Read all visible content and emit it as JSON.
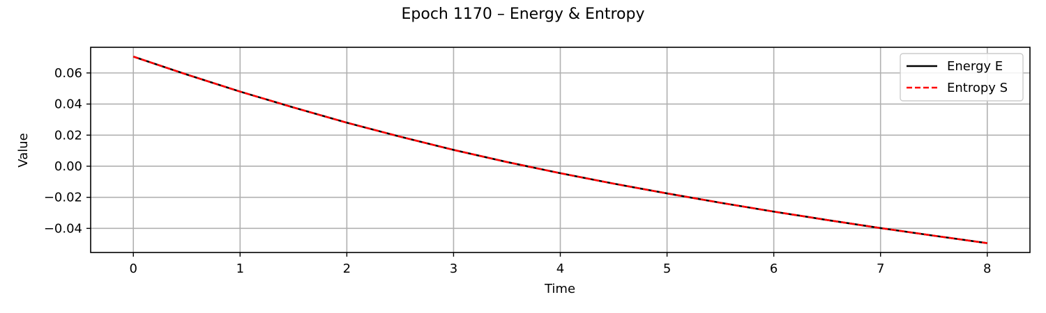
{
  "chart_data": {
    "type": "line",
    "title": "Epoch 1170 – Energy & Entropy",
    "xlabel": "Time",
    "ylabel": "Value",
    "xlim": [
      -0.4,
      8.4
    ],
    "ylim": [
      -0.0555,
      0.0765
    ],
    "xticks": [
      0,
      1,
      2,
      3,
      4,
      5,
      6,
      7,
      8
    ],
    "yticks": [
      -0.04,
      -0.02,
      0.0,
      0.02,
      0.04,
      0.06
    ],
    "ytick_labels": [
      "−0.04",
      "−0.02",
      "0.00",
      "0.02",
      "0.04",
      "0.06"
    ],
    "xtick_labels": [
      "0",
      "1",
      "2",
      "3",
      "4",
      "5",
      "6",
      "7",
      "8"
    ],
    "grid": true,
    "legend_position": "top-right",
    "x": [
      0,
      0.5,
      1,
      1.5,
      2,
      2.5,
      3,
      3.5,
      4,
      4.5,
      5,
      5.5,
      6,
      6.5,
      7,
      7.5,
      8
    ],
    "series": [
      {
        "name": "Energy E",
        "color": "#000000",
        "style": "solid",
        "values": [
          0.0705,
          0.059,
          0.048,
          0.0378,
          0.028,
          0.019,
          0.0105,
          0.0027,
          -0.0045,
          -0.0112,
          -0.0175,
          -0.0235,
          -0.0292,
          -0.0346,
          -0.0398,
          -0.0447,
          -0.0495
        ]
      },
      {
        "name": "Entropy S",
        "color": "#ff0000",
        "style": "dashed",
        "values": [
          0.0705,
          0.059,
          0.048,
          0.0378,
          0.028,
          0.019,
          0.0105,
          0.0027,
          -0.0045,
          -0.0112,
          -0.0175,
          -0.0235,
          -0.0292,
          -0.0346,
          -0.0398,
          -0.0447,
          -0.0495
        ]
      }
    ]
  }
}
